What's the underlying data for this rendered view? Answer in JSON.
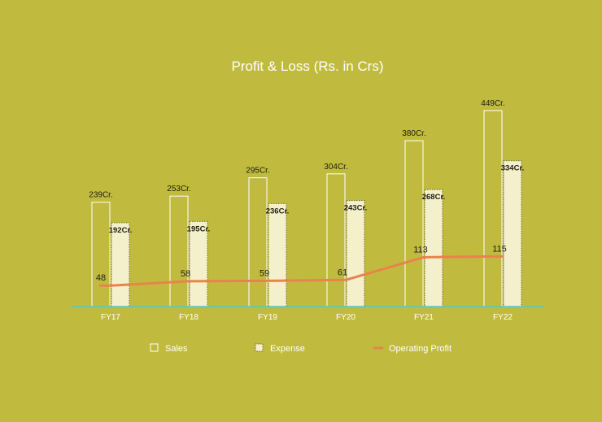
{
  "colors": {
    "background": "#c0bb3f",
    "sales_stroke": "#ffffff",
    "expense_fill": "#f5f0cc",
    "expense_stroke": "#6b6a2a",
    "operating_profit": "#e8834c",
    "axis": "#56c7bd"
  },
  "chart_data": {
    "type": "bar",
    "title": "Profit & Loss (Rs. in Crs)",
    "categories": [
      "FY17",
      "FY18",
      "FY19",
      "FY20",
      "FY21",
      "FY22"
    ],
    "series": [
      {
        "name": "Sales",
        "kind": "bar",
        "values": [
          239,
          253,
          295,
          304,
          380,
          449
        ],
        "labels": [
          "239Cr.",
          "253Cr.",
          "295Cr.",
          "304Cr.",
          "380Cr.",
          "449Cr."
        ]
      },
      {
        "name": "Expense",
        "kind": "bar",
        "values": [
          192,
          195,
          236,
          243,
          268,
          334
        ],
        "labels": [
          "192Cr.",
          "195Cr.",
          "236Cr.",
          "243Cr.",
          "268Cr.",
          "334Cr."
        ]
      },
      {
        "name": "Operating Profit",
        "kind": "line",
        "values": [
          48,
          58,
          59,
          61,
          113,
          115
        ],
        "labels": [
          "48",
          "58",
          "59",
          "61",
          "113",
          "115"
        ]
      }
    ],
    "ylim": [
      0,
      449
    ],
    "grid": false,
    "legend_position": "bottom"
  }
}
